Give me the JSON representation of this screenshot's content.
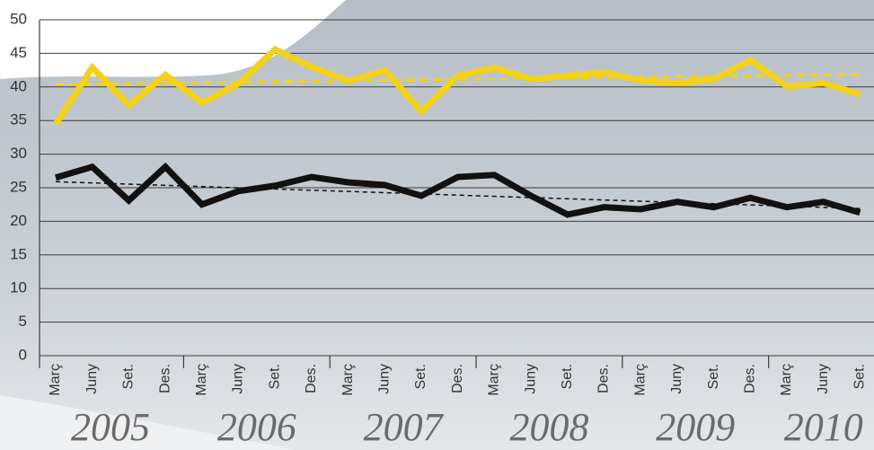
{
  "chart_data": {
    "type": "line",
    "categories": [
      "Març",
      "Juny",
      "Set.",
      "Des.",
      "Març",
      "Juny",
      "Set.",
      "Des.",
      "Març",
      "Juny",
      "Set.",
      "Des.",
      "Març",
      "Juny",
      "Set.",
      "Des.",
      "Març",
      "Juny",
      "Set.",
      "Des.",
      "Març",
      "Juny",
      "Set."
    ],
    "groups": [
      "2005",
      "2006",
      "2007",
      "2008",
      "2009",
      "2010"
    ],
    "ylim": [
      0,
      50
    ],
    "yticks": [
      0,
      5,
      10,
      15,
      20,
      25,
      30,
      35,
      40,
      45,
      50
    ],
    "grid": true,
    "series": [
      {
        "color": "#f2d21a",
        "values": [
          34.5,
          42.9,
          37.3,
          41.8,
          37.7,
          40.5,
          45.6,
          43.0,
          40.9,
          42.5,
          36.4,
          41.7,
          42.9,
          41.2,
          41.7,
          42.2,
          41.0,
          40.6,
          41.2,
          44.0,
          40.1,
          40.6,
          38.9
        ],
        "trend": {
          "start": 40.4,
          "end": 41.9
        }
      },
      {
        "color": "#111111",
        "values": [
          26.5,
          28.1,
          23.1,
          28.1,
          22.5,
          24.5,
          25.3,
          26.6,
          25.8,
          25.4,
          23.8,
          26.6,
          26.9,
          23.8,
          21.0,
          22.1,
          21.8,
          22.9,
          22.1,
          23.5,
          22.1,
          22.9,
          21.3
        ],
        "trend": {
          "start": 25.9,
          "end": 21.9
        }
      }
    ]
  }
}
